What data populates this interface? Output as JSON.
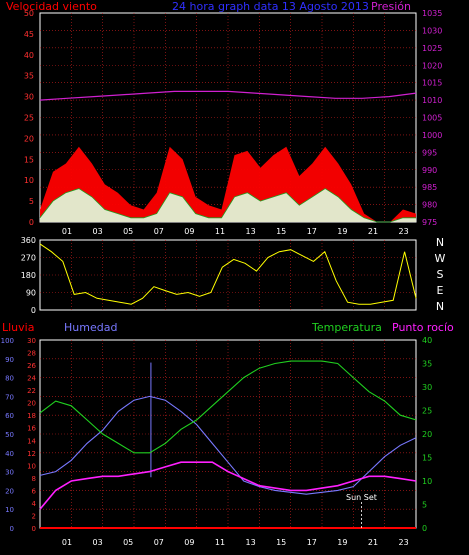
{
  "header": {
    "left_label": "Velocidad viento",
    "title": "24 hora graph data 13 Agosto 2013",
    "right_label": "Presión"
  },
  "colors": {
    "gust": "#ff0000",
    "wind": "#e0ffe0",
    "pressure": "#d020d0",
    "direction": "#ffff00",
    "humidity": "#7878ff",
    "temperature": "#20d020",
    "dewpoint": "#ff20ff",
    "rain": "#ff0000",
    "title": "#3030ff",
    "grid": "#c81e1e",
    "frame": "#ffffff"
  },
  "bottom_header": {
    "rain_label": "Lluvia",
    "humidity_label": "Humedad",
    "temperature_label": "Temperatura",
    "dewpoint_label": "Punto rocío"
  },
  "direction_labels": [
    "N",
    "W",
    "S",
    "E",
    "N"
  ],
  "sunset_label": "Sun Set",
  "chart_data": [
    {
      "type": "area",
      "name": "wind-pressure",
      "hours": [
        "01",
        "03",
        "05",
        "07",
        "09",
        "11",
        "13",
        "15",
        "17",
        "19",
        "21",
        "23"
      ],
      "wind_axis": [
        0,
        5,
        10,
        15,
        20,
        25,
        30,
        35,
        40,
        45,
        50
      ],
      "pressure_axis": [
        975,
        980,
        985,
        990,
        995,
        1000,
        1005,
        1010,
        1015,
        1020,
        1025,
        1030,
        1035
      ],
      "pressure": [
        1010,
        1010.5,
        1011,
        1011.5,
        1012,
        1012.5,
        1012.5,
        1012.5,
        1012,
        1011.5,
        1011,
        1010.5,
        1010.5,
        1011,
        1012
      ],
      "gust": [
        3,
        12,
        14,
        18,
        14,
        9,
        7,
        4,
        3,
        7,
        18,
        15,
        6,
        4,
        3,
        16,
        17,
        13,
        16,
        18,
        11,
        14,
        18,
        14,
        9,
        2,
        0,
        0,
        3,
        2
      ],
      "wind": [
        1,
        5,
        7,
        8,
        6,
        3,
        2,
        1,
        1,
        2,
        7,
        6,
        2,
        1,
        1,
        6,
        7,
        5,
        6,
        7,
        4,
        6,
        8,
        6,
        3,
        1,
        0,
        0,
        1,
        1
      ],
      "wind_max": 50,
      "pressure_range": [
        975,
        1035
      ]
    },
    {
      "type": "line",
      "name": "wind-direction",
      "axis": [
        0,
        90,
        180,
        270,
        360
      ],
      "direction": [
        340,
        300,
        250,
        80,
        90,
        60,
        50,
        40,
        30,
        60,
        120,
        100,
        80,
        90,
        70,
        90,
        220,
        260,
        240,
        200,
        270,
        300,
        310,
        280,
        250,
        300,
        150,
        40,
        30,
        30,
        40,
        50,
        300,
        60
      ],
      "range": [
        0,
        360
      ]
    },
    {
      "type": "line",
      "name": "temp-humidity",
      "hours": [
        "01",
        "03",
        "05",
        "07",
        "09",
        "11",
        "13",
        "15",
        "17",
        "19",
        "21",
        "23"
      ],
      "rain_axis": [
        0,
        2,
        4,
        6,
        8,
        10,
        12,
        14,
        16,
        18,
        20,
        22,
        24,
        26,
        28,
        30
      ],
      "humidity_axis": [
        0,
        10,
        20,
        30,
        40,
        50,
        60,
        70,
        80,
        90,
        100
      ],
      "temp_axis": [
        0,
        5,
        10,
        15,
        20,
        25,
        30,
        35,
        40
      ],
      "rain_range": [
        0,
        30
      ],
      "humidity_range": [
        0,
        100
      ],
      "temp_range": [
        0,
        40
      ],
      "humidity": [
        28,
        30,
        36,
        45,
        52,
        62,
        68,
        70,
        68,
        62,
        55,
        45,
        35,
        25,
        22,
        20,
        19,
        18,
        19,
        20,
        22,
        30,
        38,
        44,
        48
      ],
      "temperature": [
        24.5,
        27,
        26,
        23,
        20,
        18,
        16,
        16,
        18,
        21,
        23,
        26,
        29,
        32,
        34,
        35,
        35.5,
        35.5,
        35.5,
        35,
        32,
        29,
        27,
        24,
        23
      ],
      "dewpoint": [
        4,
        8,
        10,
        10.5,
        11,
        11,
        11.5,
        12,
        13,
        14,
        14,
        14,
        12,
        10.5,
        9,
        8.5,
        8,
        8,
        8.5,
        9,
        10,
        11,
        11,
        10.5,
        10
      ],
      "rain": [
        0,
        0,
        0,
        0,
        0,
        0,
        0,
        0,
        0,
        0,
        0,
        0,
        0,
        0,
        0,
        0,
        0,
        0,
        0,
        0,
        0,
        0,
        0,
        0,
        0
      ],
      "humidity_spike": 88
    }
  ]
}
